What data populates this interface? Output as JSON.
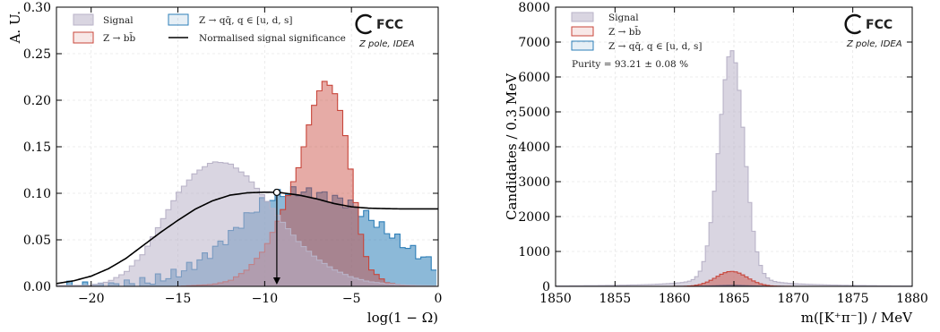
{
  "chart_data": [
    {
      "type": "area",
      "xlabel": "log(1 − Ω)",
      "ylabel": "A. U.",
      "xlim": [
        -22,
        0
      ],
      "ylim": [
        0,
        0.3
      ],
      "xticks": [
        -20,
        -15,
        -10,
        -5,
        0
      ],
      "yticks": [
        0,
        0.05,
        0.1,
        0.15,
        0.2,
        0.25,
        0.3
      ],
      "xtick_labels": [
        "−20",
        "−15",
        "−10",
        "−5",
        "0"
      ],
      "ytick_labels": [
        "0.00",
        "0.05",
        "0.10",
        "0.15",
        "0.20",
        "0.25",
        "0.30"
      ],
      "grid": true,
      "legend_position": "top-left",
      "series": [
        {
          "name": "Signal",
          "kind": "histogram",
          "color": "#b9b3c8",
          "points": [
            [
              -20,
              0.001
            ],
            [
              -19,
              0.005
            ],
            [
              -18,
              0.015
            ],
            [
              -17,
              0.035
            ],
            [
              -16,
              0.068
            ],
            [
              -15,
              0.1
            ],
            [
              -14,
              0.122
            ],
            [
              -13,
              0.134
            ],
            [
              -12,
              0.132
            ],
            [
              -11,
              0.118
            ],
            [
              -10,
              0.095
            ],
            [
              -9,
              0.07
            ],
            [
              -8,
              0.047
            ],
            [
              -7,
              0.03
            ],
            [
              -6,
              0.018
            ],
            [
              -5,
              0.01
            ],
            [
              -4,
              0.005
            ],
            [
              -3,
              0.003
            ],
            [
              -2,
              0.0015
            ],
            [
              -1,
              0.0008
            ],
            [
              0,
              0.0004
            ]
          ]
        },
        {
          "name": "Z → bb̄",
          "kind": "histogram",
          "color": "#c8453a",
          "points": [
            [
              -15,
              0.0
            ],
            [
              -13,
              0.002
            ],
            [
              -12,
              0.006
            ],
            [
              -11,
              0.018
            ],
            [
              -10,
              0.04
            ],
            [
              -9,
              0.08
            ],
            [
              -8,
              0.13
            ],
            [
              -7.5,
              0.17
            ],
            [
              -7,
              0.205
            ],
            [
              -6.5,
              0.222
            ],
            [
              -6,
              0.21
            ],
            [
              -5.5,
              0.18
            ],
            [
              -5,
              0.12
            ],
            [
              -4.5,
              0.06
            ],
            [
              -4,
              0.02
            ],
            [
              -3,
              0.004
            ],
            [
              -2,
              0.001
            ],
            [
              0,
              0.0
            ]
          ]
        },
        {
          "name": "Z → qq̄, q ∈ [u, d, s]",
          "kind": "histogram",
          "color": "#2e7fb8",
          "points": [
            [
              -19,
              0.0
            ],
            [
              -18,
              0.002
            ],
            [
              -17,
              0.004
            ],
            [
              -16,
              0.008
            ],
            [
              -15,
              0.014
            ],
            [
              -14,
              0.024
            ],
            [
              -13,
              0.038
            ],
            [
              -12,
              0.055
            ],
            [
              -11,
              0.075
            ],
            [
              -10,
              0.092
            ],
            [
              -9,
              0.1
            ],
            [
              -8,
              0.102
            ],
            [
              -7,
              0.1
            ],
            [
              -6,
              0.095
            ],
            [
              -5,
              0.088
            ],
            [
              -4,
              0.074
            ],
            [
              -3,
              0.06
            ],
            [
              -2,
              0.045
            ],
            [
              -1,
              0.033
            ],
            [
              -0.3,
              0.024
            ],
            [
              0,
              0.02
            ]
          ]
        },
        {
          "name": "Normalised signal significance",
          "kind": "line",
          "color": "#000000",
          "points": [
            [
              -22,
              0.003
            ],
            [
              -21,
              0.006
            ],
            [
              -20,
              0.011
            ],
            [
              -19,
              0.019
            ],
            [
              -18,
              0.03
            ],
            [
              -17,
              0.044
            ],
            [
              -16,
              0.058
            ],
            [
              -15,
              0.071
            ],
            [
              -14,
              0.083
            ],
            [
              -13,
              0.092
            ],
            [
              -12,
              0.098
            ],
            [
              -11,
              0.1005
            ],
            [
              -10,
              0.1012
            ],
            [
              -9.3,
              0.101
            ],
            [
              -9,
              0.1005
            ],
            [
              -8,
              0.098
            ],
            [
              -7,
              0.094
            ],
            [
              -6,
              0.089
            ],
            [
              -5,
              0.0855
            ],
            [
              -4,
              0.084
            ],
            [
              -3,
              0.0835
            ],
            [
              -2,
              0.0832
            ],
            [
              -1,
              0.0832
            ],
            [
              0,
              0.0832
            ]
          ]
        }
      ],
      "annotations": [
        {
          "type": "marker-arrow",
          "x": -9.3,
          "y": 0.101
        }
      ],
      "logo": {
        "name": "FCC",
        "subtitle": "Z pole, IDEA"
      }
    },
    {
      "type": "area",
      "xlabel": "m([K⁺π⁻]) / MeV",
      "ylabel": "Candidates / 0.3 MeV",
      "xlim": [
        1850,
        1880
      ],
      "ylim": [
        0,
        8000
      ],
      "xticks": [
        1850,
        1855,
        1860,
        1865,
        1870,
        1875,
        1880
      ],
      "yticks": [
        0,
        1000,
        2000,
        3000,
        4000,
        5000,
        6000,
        7000,
        8000
      ],
      "xtick_labels": [
        "1850",
        "1855",
        "1860",
        "1865",
        "1870",
        "1875",
        "1880"
      ],
      "ytick_labels": [
        "0",
        "1000",
        "2000",
        "3000",
        "4000",
        "5000",
        "6000",
        "7000",
        "8000"
      ],
      "grid": true,
      "legend_position": "top-left",
      "purity_text": "Purity = 93.21 ± 0.08 %",
      "peak_center": 1864.8,
      "series": [
        {
          "name": "Signal",
          "kind": "histogram",
          "color": "#b9b3c8",
          "peak": 6500,
          "sigma": 1.05,
          "tail_amp": 0.04,
          "tail_gamma": 3.5
        },
        {
          "name": "Z → bb̄",
          "kind": "histogram",
          "color": "#c8453a",
          "peak": 430,
          "sigma": 1.3
        },
        {
          "name": "Z → qq̄, q ∈ [u, d, s]",
          "kind": "histogram",
          "color": "#2e7fb8",
          "peak": 30,
          "sigma": 1.5
        }
      ],
      "logo": {
        "name": "FCC",
        "subtitle": "Z pole, IDEA"
      }
    }
  ]
}
